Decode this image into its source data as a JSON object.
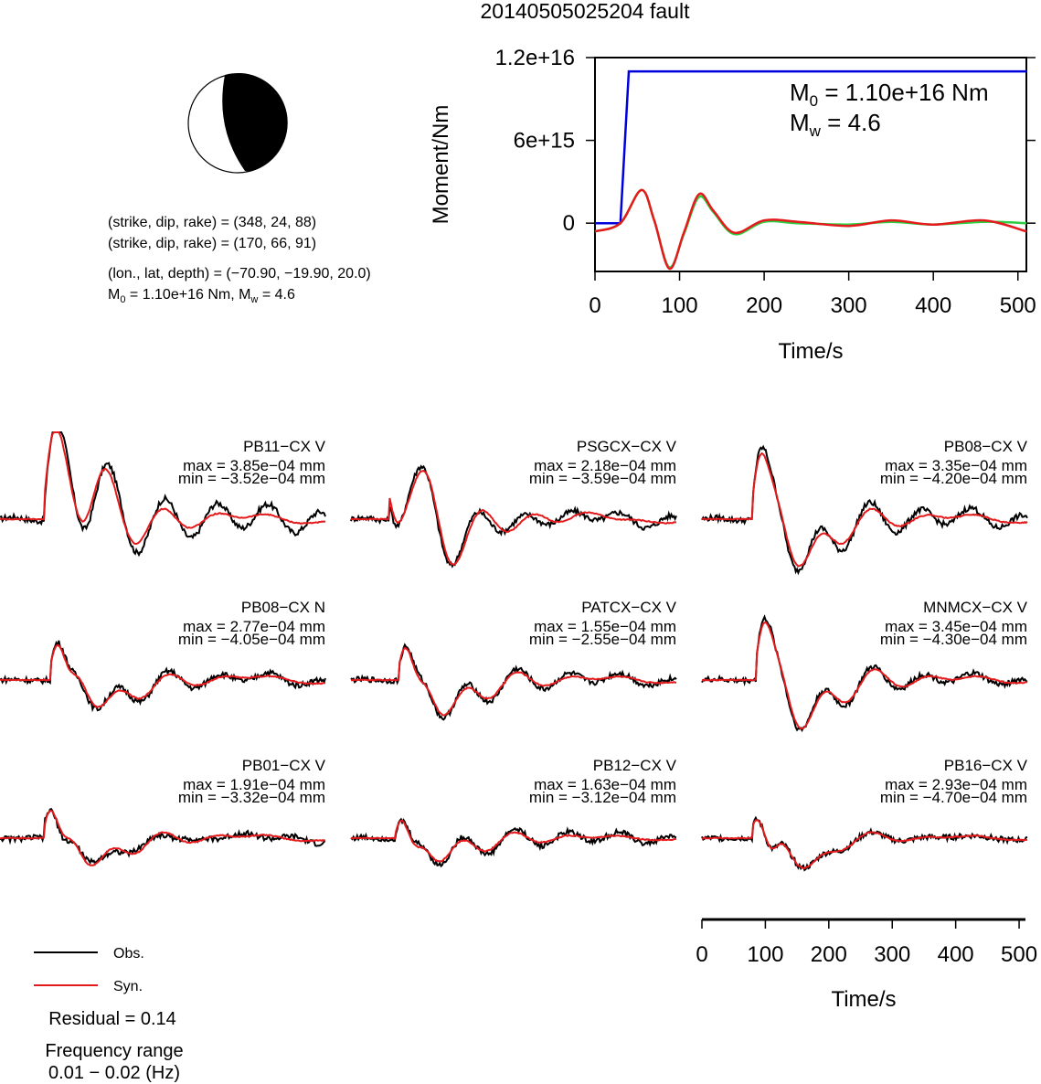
{
  "title": "20140505025204 fault",
  "beachball": {
    "line1": "(strike, dip, rake) = (348, 24, 88)",
    "line2": "(strike, dip, rake) = (170, 66, 91)",
    "line3": "(lon., lat, depth) = (−70.90, −19.90, 20.0)",
    "m0_label": "M",
    "m0_sub": "0",
    "m0_rest": " = 1.10e+16 Nm, M",
    "mw_sub": "w",
    "mw_rest": " = 4.6"
  },
  "moment_panel": {
    "ylabel": "Moment/Nm",
    "xlabel": "Time/s",
    "ytick_labels": [
      "0",
      "6e+15",
      "1.2e+16"
    ],
    "xtick_labels": [
      "0",
      "100",
      "200",
      "300",
      "400",
      "500"
    ],
    "m0_prefix": "M",
    "m0_sub": "0",
    "m0_value": " = 1.10e+16 Nm",
    "mw_prefix": "M",
    "mw_sub": "w",
    "mw_value": " = 4.6"
  },
  "waveform_panel": {
    "xlabel": "Time/s",
    "xtick_labels": [
      "0",
      "100",
      "200",
      "300",
      "400",
      "500"
    ]
  },
  "legend": {
    "obs": "Obs.",
    "syn": "Syn.",
    "residual": "Residual = 0.14",
    "freq_title": "Frequency range",
    "freq_range": "0.01 − 0.02 (Hz)"
  },
  "colors": {
    "obs": "#000000",
    "syn": "#e41a1c",
    "moment_rate": "#2ecc40",
    "cumulative": "#0000dd"
  },
  "chart_data": [
    {
      "type": "line",
      "title": "",
      "xlabel": "Time/s",
      "ylabel": "Moment/Nm",
      "xlim": [
        0,
        510
      ],
      "ylim": [
        -3500000000000000.0,
        1.2e+16
      ],
      "series": [
        {
          "x": [
            0,
            30,
            40,
            510
          ],
          "y": [
            0,
            0,
            1.1e+16,
            1.1e+16
          ]
        },
        {
          "x": [
            0,
            30,
            55,
            70,
            88,
            105,
            123,
            140,
            165,
            200,
            240,
            300,
            350,
            400,
            460,
            510
          ],
          "y": [
            -600000000000000.0,
            0,
            2400000000000000.0,
            200000000000000.0,
            -3200000000000000.0,
            -800000000000000.0,
            1900000000000000.0,
            800000000000000.0,
            -800000000000000.0,
            100000000000000.0,
            0,
            -100000000000000.0,
            100000000000000.0,
            -100000000000000.0,
            100000000000000.0,
            0
          ]
        },
        {
          "x": [
            0,
            30,
            55,
            70,
            88,
            105,
            123,
            140,
            165,
            200,
            240,
            300,
            350,
            400,
            460,
            510
          ],
          "y": [
            -600000000000000.0,
            0,
            2400000000000000.0,
            200000000000000.0,
            -3300000000000000.0,
            -700000000000000.0,
            2100000000000000.0,
            900000000000000.0,
            -700000000000000.0,
            200000000000000.0,
            100000000000000.0,
            -200000000000000.0,
            200000000000000.0,
            -100000000000000.0,
            200000000000000.0,
            -600000000000000.0
          ]
        }
      ]
    },
    {
      "type": "line",
      "title": "",
      "xlabel": "Time/s",
      "xlim": [
        0,
        510
      ],
      "traces": [
        {
          "name": "PB11−CX V",
          "max": "max = 3.85e−04 mm",
          "min": "min = −3.52e−04 mm",
          "row": 0,
          "col": 0,
          "start": 70,
          "pk": [
            [
              0.9,
              -0.35
            ],
            [
              0.68,
              0.6
            ],
            [
              0.22,
              0.15
            ]
          ]
        },
        {
          "name": "PSGCX−CX V",
          "max": "max = 2.18e−04 mm",
          "min": "min = −3.59e−04 mm",
          "row": 0,
          "col": 1,
          "start": 60,
          "pk": [
            [
              -0.8,
              0.4
            ],
            [
              0.45,
              -0.3
            ],
            [
              0.2,
              0.1
            ]
          ]
        },
        {
          "name": "PB08−CX V",
          "max": "max = 3.35e−04 mm",
          "min": "min = −4.20e−04 mm",
          "row": 0,
          "col": 2,
          "start": 80,
          "pk": [
            [
              0.75,
              -0.75
            ],
            [
              0.8,
              -0.5
            ],
            [
              0.2,
              0.1
            ]
          ]
        },
        {
          "name": "PB08−CX N",
          "max": "max = 2.77e−04 mm",
          "min": "min = −4.05e−04 mm",
          "row": 1,
          "col": 0,
          "start": 80,
          "pk": [
            [
              0.5,
              -0.9
            ],
            [
              0.65,
              -0.3
            ],
            [
              0.2,
              0.05
            ]
          ]
        },
        {
          "name": "PATCX−CX V",
          "max": "max = 1.55e−04 mm",
          "min": "min = −2.55e−04 mm",
          "row": 1,
          "col": 1,
          "start": 75,
          "pk": [
            [
              0.6,
              -0.95
            ],
            [
              0.55,
              -0.35
            ],
            [
              0.15,
              0.05
            ]
          ]
        },
        {
          "name": "MNMCX−CX V",
          "max": "max = 3.45e−04 mm",
          "min": "min = −4.30e−04 mm",
          "row": 1,
          "col": 2,
          "start": 85,
          "pk": [
            [
              0.75,
              -0.7
            ],
            [
              0.65,
              -0.5
            ],
            [
              0.15,
              0.05
            ]
          ]
        },
        {
          "name": "PB01−CX V",
          "max": "max = 1.91e−04 mm",
          "min": "min = −3.32e−04 mm",
          "row": 2,
          "col": 0,
          "start": 70,
          "pk": [
            [
              0.45,
              -0.85
            ],
            [
              0.55,
              -0.3
            ],
            [
              0.15,
              -0.05
            ]
          ]
        },
        {
          "name": "PB12−CX V",
          "max": "max = 1.63e−04 mm",
          "min": "min = −3.12e−04 mm",
          "row": 2,
          "col": 1,
          "start": 70,
          "pk": [
            [
              0.45,
              -0.8
            ],
            [
              0.35,
              -0.2
            ],
            [
              0.1,
              0.05
            ]
          ]
        },
        {
          "name": "PB16−CX V",
          "max": "max = 2.93e−04 mm",
          "min": "min = −4.70e−04 mm",
          "row": 2,
          "col": 2,
          "start": 80,
          "pk": [
            [
              0.3,
              -0.9
            ],
            [
              0.55,
              -0.35
            ],
            [
              0.1,
              0.0
            ]
          ]
        }
      ]
    }
  ]
}
